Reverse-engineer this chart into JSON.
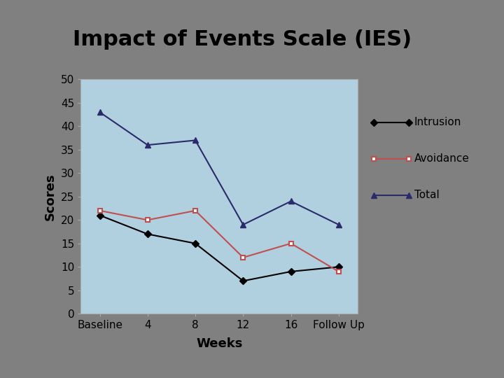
{
  "title": "Impact of Events Scale (IES)",
  "xlabel": "Weeks",
  "ylabel": "Scores",
  "x_labels": [
    "Baseline",
    "4",
    "8",
    "12",
    "16",
    "Follow Up"
  ],
  "intrusion": [
    21,
    17,
    15,
    7,
    9,
    10
  ],
  "avoidance": [
    22,
    20,
    22,
    12,
    15,
    9
  ],
  "total": [
    43,
    36,
    37,
    19,
    24,
    19
  ],
  "ylim": [
    0,
    50
  ],
  "yticks": [
    0,
    5,
    10,
    15,
    20,
    25,
    30,
    35,
    40,
    45,
    50
  ],
  "intrusion_color": "#000000",
  "avoidance_color": "#C05050",
  "total_color": "#2B2B6B",
  "plot_bg_color": "#B0D0E0",
  "title_bg_top": "#8EC0E0",
  "title_bg_bottom": "#A8C8E8",
  "title_border_color": "#4A9090",
  "outer_bg_color": "#808080",
  "legend_bg_color": "#E8F0F8",
  "legend_border_color": "#7AB0D8",
  "chart_outer_bg": "#F0F0F0",
  "title_fontsize": 22,
  "axis_label_fontsize": 13,
  "tick_fontsize": 11,
  "legend_fontsize": 11
}
